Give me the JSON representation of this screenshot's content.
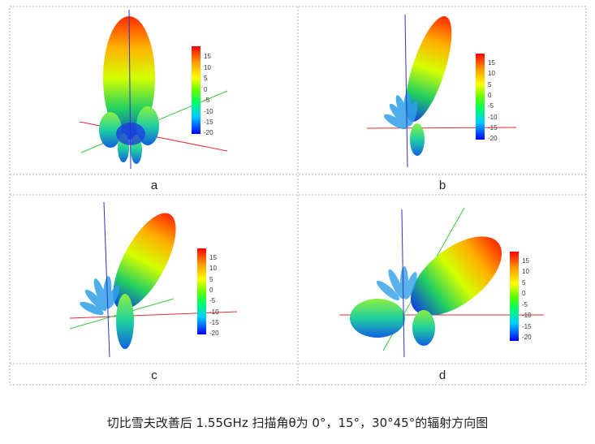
{
  "figure": {
    "caption": "切比雪夫改善后 1.55GHz 扫描角θ为 0°，15°，30°45°的辐射方向图",
    "panels": [
      {
        "id": "panel-a",
        "label": "a",
        "colorbar_ticks": [
          "15",
          "10",
          "5",
          "0",
          "-5",
          "-10",
          "-15",
          "-20"
        ]
      },
      {
        "id": "panel-b",
        "label": "b",
        "colorbar_ticks": [
          "15",
          "10",
          "5",
          "0",
          "-5",
          "-10",
          "-15",
          "-20"
        ]
      },
      {
        "id": "panel-c",
        "label": "c",
        "colorbar_ticks": [
          "15",
          "10",
          "5",
          "0",
          "-5",
          "-10",
          "-15",
          "-20"
        ]
      },
      {
        "id": "panel-d",
        "label": "d",
        "colorbar_ticks": [
          "15",
          "10",
          "5",
          "0",
          "-5",
          "-10",
          "-15",
          "-20"
        ]
      }
    ]
  },
  "colors": {
    "grid_border": "#b0b0b0",
    "axis_x": "#e03030",
    "axis_y": "#3cc83c",
    "axis_z": "#3030c8"
  }
}
